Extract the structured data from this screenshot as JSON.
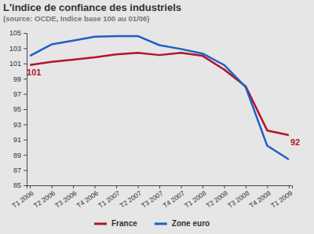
{
  "chart_data": {
    "type": "line",
    "title": "L'indice de confiance des industriels",
    "subtitle": "(source: OCDE, Indice base 100 au 01/06)",
    "categories": [
      "T1 2006",
      "T2 2006",
      "T3 2006",
      "T4 2006",
      "T1 2007",
      "T2 2007",
      "T3 2007",
      "T4 2007",
      "T1 2008",
      "T2 2008",
      "T3 2008",
      "T4 2008",
      "T1 2009"
    ],
    "series": [
      {
        "name": "France",
        "color": "#b3142b",
        "values": [
          100.8,
          101.2,
          101.5,
          101.8,
          102.2,
          102.4,
          102.1,
          102.4,
          102.0,
          100.2,
          98.0,
          92.2,
          91.6
        ],
        "value_labels": [
          "101",
          null,
          null,
          null,
          null,
          null,
          null,
          null,
          null,
          null,
          null,
          null,
          "92"
        ]
      },
      {
        "name": "Zone euro",
        "color": "#1f5fc8",
        "values": [
          102.0,
          103.5,
          104.0,
          104.5,
          104.6,
          104.6,
          103.4,
          102.9,
          102.3,
          100.8,
          97.9,
          90.2,
          88.4
        ]
      }
    ],
    "ylim": [
      85,
      105
    ],
    "yticks": [
      85,
      87,
      89,
      91,
      93,
      95,
      97,
      99,
      101,
      103,
      105
    ],
    "grid": false,
    "legend": "bottom"
  }
}
